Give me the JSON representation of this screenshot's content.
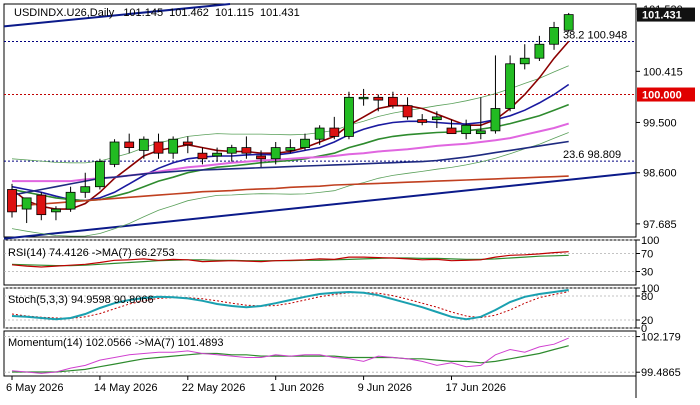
{
  "chart_data": {
    "type": "candlestick",
    "header": {
      "symbol": "USDINDX.U26,Daily",
      "open": "101.145",
      "high": "101.462",
      "low": "101.115",
      "close": "101.431"
    },
    "x_axis": {
      "tick_labels": [
        "6 May 2026",
        "14 May 2026",
        "22 May 2026",
        "1 Jun 2026",
        "9 Jun 2026",
        "17 Jun 2026"
      ],
      "tick_bar_index": [
        0,
        6,
        12,
        18,
        24,
        30
      ]
    },
    "main_panel": {
      "y_tick_labels": [
        "101.530",
        "100.415",
        "99.500",
        "98.600",
        "97.685"
      ],
      "y_tick_values": [
        101.53,
        100.415,
        99.5,
        98.6,
        97.685
      ],
      "ylim": [
        97.45,
        101.62
      ],
      "price_label": "101.431",
      "price_value": 101.431,
      "level_label": "100.000",
      "level_value": 100.0,
      "fib_levels": [
        {
          "label": "38.2 100.948",
          "value": 100.948
        },
        {
          "label": "23.6 98.809",
          "value": 98.809
        }
      ],
      "candles": [
        {
          "o": 98.3,
          "h": 98.4,
          "l": 97.8,
          "c": 97.9
        },
        {
          "o": 97.95,
          "h": 98.15,
          "l": 97.7,
          "c": 98.15
        },
        {
          "o": 98.2,
          "h": 98.25,
          "l": 97.75,
          "c": 97.85
        },
        {
          "o": 97.9,
          "h": 98.0,
          "l": 97.75,
          "c": 97.95
        },
        {
          "o": 97.95,
          "h": 98.35,
          "l": 97.9,
          "c": 98.25
        },
        {
          "o": 98.25,
          "h": 98.6,
          "l": 98.15,
          "c": 98.35
        },
        {
          "o": 98.35,
          "h": 98.85,
          "l": 98.3,
          "c": 98.8
        },
        {
          "o": 98.75,
          "h": 99.2,
          "l": 98.7,
          "c": 99.15
        },
        {
          "o": 99.15,
          "h": 99.3,
          "l": 98.95,
          "c": 99.05
        },
        {
          "o": 99.0,
          "h": 99.25,
          "l": 98.85,
          "c": 99.2
        },
        {
          "o": 99.15,
          "h": 99.3,
          "l": 98.85,
          "c": 98.95
        },
        {
          "o": 98.95,
          "h": 99.25,
          "l": 98.85,
          "c": 99.2
        },
        {
          "o": 99.15,
          "h": 99.25,
          "l": 98.95,
          "c": 99.1
        },
        {
          "o": 98.95,
          "h": 99.05,
          "l": 98.75,
          "c": 98.85
        },
        {
          "o": 98.9,
          "h": 99.05,
          "l": 98.8,
          "c": 98.95
        },
        {
          "o": 98.95,
          "h": 99.1,
          "l": 98.8,
          "c": 99.05
        },
        {
          "o": 99.05,
          "h": 99.25,
          "l": 98.85,
          "c": 98.95
        },
        {
          "o": 98.9,
          "h": 99.0,
          "l": 98.7,
          "c": 98.85
        },
        {
          "o": 98.85,
          "h": 99.15,
          "l": 98.75,
          "c": 99.05
        },
        {
          "o": 99.0,
          "h": 99.2,
          "l": 98.95,
          "c": 99.05
        },
        {
          "o": 99.05,
          "h": 99.3,
          "l": 99.0,
          "c": 99.2
        },
        {
          "o": 99.2,
          "h": 99.45,
          "l": 99.1,
          "c": 99.4
        },
        {
          "o": 99.4,
          "h": 99.6,
          "l": 99.2,
          "c": 99.25
        },
        {
          "o": 99.25,
          "h": 100.05,
          "l": 99.2,
          "c": 99.95
        },
        {
          "o": 99.95,
          "h": 100.1,
          "l": 99.8,
          "c": 99.95
        },
        {
          "o": 99.95,
          "h": 100.0,
          "l": 99.7,
          "c": 99.9
        },
        {
          "o": 99.95,
          "h": 100.05,
          "l": 99.75,
          "c": 99.8
        },
        {
          "o": 99.8,
          "h": 99.95,
          "l": 99.55,
          "c": 99.6
        },
        {
          "o": 99.55,
          "h": 99.65,
          "l": 99.45,
          "c": 99.5
        },
        {
          "o": 99.55,
          "h": 99.7,
          "l": 99.4,
          "c": 99.6
        },
        {
          "o": 99.4,
          "h": 99.55,
          "l": 99.3,
          "c": 99.3
        },
        {
          "o": 99.3,
          "h": 99.55,
          "l": 99.2,
          "c": 99.45
        },
        {
          "o": 99.3,
          "h": 99.95,
          "l": 99.2,
          "c": 99.35
        },
        {
          "o": 99.35,
          "h": 100.7,
          "l": 99.3,
          "c": 99.75
        },
        {
          "o": 99.75,
          "h": 100.7,
          "l": 99.7,
          "c": 100.55
        },
        {
          "o": 100.55,
          "h": 100.9,
          "l": 100.45,
          "c": 100.65
        },
        {
          "o": 100.65,
          "h": 101.05,
          "l": 100.6,
          "c": 100.9
        },
        {
          "o": 100.9,
          "h": 101.3,
          "l": 100.8,
          "c": 101.2
        },
        {
          "o": 101.15,
          "h": 101.46,
          "l": 101.12,
          "c": 101.43
        }
      ],
      "moving_averages": [
        {
          "color": "#8b0000",
          "values": [
            98.3,
            98.1,
            98.0,
            97.95,
            97.95,
            98.05,
            98.25,
            98.5,
            98.7,
            98.9,
            99.0,
            99.05,
            99.1,
            99.05,
            99.0,
            98.98,
            98.98,
            98.95,
            98.95,
            98.98,
            99.05,
            99.15,
            99.25,
            99.45,
            99.6,
            99.75,
            99.8,
            99.8,
            99.75,
            99.65,
            99.55,
            99.45,
            99.45,
            99.55,
            99.75,
            100.0,
            100.3,
            100.65,
            100.95
          ]
        },
        {
          "color": "#1a1aa0",
          "values": [
            98.35,
            98.3,
            98.25,
            98.18,
            98.12,
            98.1,
            98.15,
            98.25,
            98.4,
            98.55,
            98.68,
            98.78,
            98.85,
            98.88,
            98.9,
            98.9,
            98.92,
            98.93,
            98.92,
            98.95,
            99.0,
            99.05,
            99.15,
            99.28,
            99.38,
            99.45,
            99.5,
            99.52,
            99.52,
            99.5,
            99.48,
            99.47,
            99.5,
            99.55,
            99.62,
            99.72,
            99.85,
            100.0,
            100.18
          ]
        },
        {
          "color": "#2e8b2e",
          "values": [
            98.3,
            98.25,
            98.2,
            98.15,
            98.12,
            98.1,
            98.12,
            98.18,
            98.25,
            98.35,
            98.45,
            98.52,
            98.6,
            98.65,
            98.7,
            98.72,
            98.75,
            98.78,
            98.8,
            98.82,
            98.85,
            98.9,
            98.95,
            99.05,
            99.12,
            99.2,
            99.25,
            99.28,
            99.3,
            99.32,
            99.33,
            99.35,
            99.38,
            99.42,
            99.48,
            99.55,
            99.62,
            99.72,
            99.82
          ]
        },
        {
          "color": "#e066e0",
          "values": [
            98.45,
            98.45,
            98.45,
            98.45,
            98.45,
            98.48,
            98.5,
            98.52,
            98.55,
            98.58,
            98.62,
            98.66,
            98.7,
            98.72,
            98.75,
            98.78,
            98.8,
            98.82,
            98.83,
            98.85,
            98.87,
            98.88,
            98.9,
            98.93,
            98.95,
            98.98,
            99.0,
            99.02,
            99.05,
            99.08,
            99.1,
            99.12,
            99.15,
            99.18,
            99.22,
            99.28,
            99.34,
            99.4,
            99.48
          ]
        },
        {
          "color": "#c04020",
          "values": [
            98.0,
            98.02,
            98.04,
            98.06,
            98.08,
            98.1,
            98.12,
            98.14,
            98.16,
            98.18,
            98.2,
            98.22,
            98.24,
            98.26,
            98.27,
            98.28,
            98.3,
            98.31,
            98.32,
            98.34,
            98.35,
            98.36,
            98.38,
            98.39,
            98.4,
            98.41,
            98.42,
            98.43,
            98.44,
            98.45,
            98.46,
            98.47,
            98.48,
            98.49,
            98.5,
            98.51,
            98.52,
            98.53,
            98.54
          ]
        },
        {
          "color": "#1e2a80",
          "values": [
            98.2,
            98.25,
            98.3,
            98.35,
            98.4,
            98.45,
            98.5,
            98.52,
            98.55,
            98.58,
            98.6,
            98.62,
            98.64,
            98.65,
            98.66,
            98.67,
            98.68,
            98.69,
            98.7,
            98.71,
            98.72,
            98.73,
            98.74,
            98.75,
            98.76,
            98.77,
            98.78,
            98.79,
            98.8,
            98.82,
            98.85,
            98.88,
            98.92,
            98.96,
            99.0,
            99.04,
            99.08,
            99.12,
            99.16
          ]
        }
      ]
    },
    "rsi_panel": {
      "label": "RSI(14) 74.4126  ->MA(7) 66.2753",
      "y_tick_labels": [
        "100",
        "70",
        "30"
      ],
      "y_tick_values": [
        100,
        70,
        30
      ],
      "ylim": [
        0,
        100
      ],
      "rsi": [
        45,
        42,
        40,
        42,
        44,
        46,
        50,
        55,
        56,
        58,
        55,
        57,
        56,
        52,
        53,
        54,
        53,
        52,
        54,
        55,
        56,
        58,
        57,
        62,
        62,
        61,
        60,
        58,
        56,
        57,
        54,
        55,
        56,
        62,
        66,
        67,
        69,
        72,
        74
      ],
      "ma": [
        46,
        45,
        44,
        43,
        43,
        44,
        46,
        48,
        50,
        52,
        54,
        55,
        56,
        56,
        55,
        55,
        54,
        54,
        54,
        54,
        55,
        55,
        56,
        57,
        58,
        59,
        60,
        60,
        59,
        59,
        58,
        57,
        57,
        58,
        60,
        62,
        64,
        65,
        66
      ]
    },
    "stoch_panel": {
      "label": "Stoch(5,3,3) 94.9598  90.8066",
      "y_tick_labels": [
        "100",
        "80",
        "20",
        "0"
      ],
      "y_tick_values": [
        100,
        80,
        20,
        0
      ],
      "ylim": [
        0,
        100
      ],
      "k": [
        30,
        28,
        25,
        22,
        25,
        35,
        50,
        62,
        70,
        75,
        78,
        77,
        74,
        68,
        60,
        55,
        52,
        55,
        62,
        70,
        78,
        85,
        88,
        90,
        88,
        82,
        72,
        62,
        52,
        40,
        28,
        22,
        28,
        45,
        65,
        78,
        85,
        90,
        95
      ],
      "d": [
        35,
        30,
        27,
        25,
        24,
        28,
        36,
        48,
        60,
        68,
        74,
        76,
        76,
        73,
        68,
        62,
        57,
        55,
        56,
        62,
        70,
        78,
        84,
        88,
        89,
        87,
        81,
        72,
        62,
        52,
        40,
        30,
        26,
        32,
        45,
        62,
        76,
        84,
        91
      ]
    },
    "momentum_panel": {
      "label": "Momentum(14) 102.0566  ->MA(7) 101.4893",
      "y_tick_labels": [
        "102.179",
        "99.4865"
      ],
      "y_tick_values": [
        102.179,
        99.4865
      ],
      "ylim": [
        99.2,
        102.6
      ],
      "momentum": [
        99.6,
        99.5,
        99.4,
        99.5,
        99.8,
        100.0,
        100.4,
        100.6,
        100.8,
        100.9,
        101.0,
        101.0,
        101.1,
        100.9,
        100.8,
        100.7,
        100.6,
        100.6,
        100.8,
        100.7,
        100.8,
        100.8,
        100.6,
        100.5,
        100.3,
        100.7,
        100.6,
        100.5,
        100.3,
        100.0,
        100.2,
        99.9,
        100.0,
        100.8,
        101.2,
        101.0,
        101.4,
        101.6,
        102.06
      ],
      "ma": [
        99.5,
        99.5,
        99.5,
        99.5,
        99.6,
        99.7,
        99.9,
        100.1,
        100.3,
        100.5,
        100.6,
        100.7,
        100.8,
        100.9,
        100.9,
        100.8,
        100.8,
        100.7,
        100.7,
        100.7,
        100.7,
        100.7,
        100.7,
        100.6,
        100.6,
        100.6,
        100.6,
        100.5,
        100.5,
        100.4,
        100.3,
        100.3,
        100.2,
        100.3,
        100.5,
        100.7,
        100.9,
        101.2,
        101.49
      ]
    }
  }
}
